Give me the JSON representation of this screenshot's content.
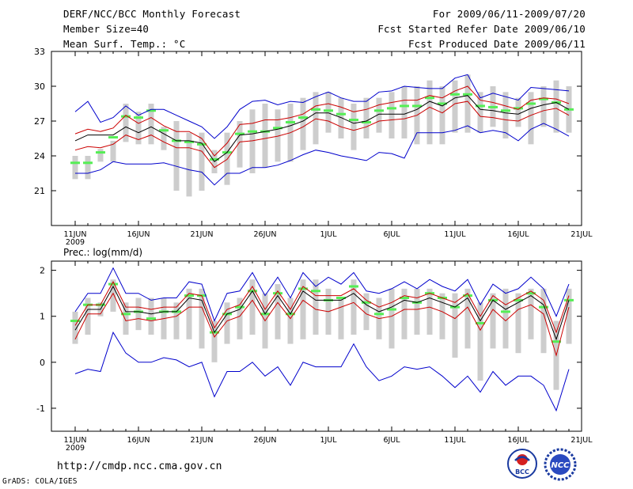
{
  "header": {
    "title": "DERF/NCC/BCC Monthly Forecast",
    "member_size": "Member Size=40",
    "variable": "Mean Surf. Temp.: °C",
    "forecast_period": "For 2009/06/11-2009/07/20",
    "start_date": "Fcst Started Refer Date 2009/06/10",
    "produced_date": "Fcst Produced Date 2009/06/11"
  },
  "footer": {
    "url": "http://cmdp.ncc.cma.gov.cn",
    "credit": "GrADS: COLA/IGES",
    "logo_left_text": "BCC",
    "logo_right_text": "NCC"
  },
  "colors": {
    "box": "#cdcdcd",
    "mean_marker": "#55ee55",
    "outer_line": "#0000cc",
    "inner_line": "#cc0000",
    "center_line": "#000000"
  },
  "chart_data": [
    {
      "type": "line",
      "title": "Mean Surf. Temp.: °C",
      "ylim": [
        18,
        33
      ],
      "yticks": [
        "21",
        "24",
        "27",
        "30",
        "33"
      ],
      "x_ticks": [
        "11JUN",
        "16JUN",
        "21JUN",
        "26JUN",
        "1JUL",
        "6JUL",
        "11JUL",
        "16JUL",
        "21JUL"
      ],
      "x_year_label": "2009",
      "days": 40,
      "box_low": [
        22.0,
        22.0,
        23.5,
        23.5,
        25.2,
        25.0,
        25.0,
        24.5,
        21.0,
        20.5,
        21.0,
        22.5,
        21.5,
        23.0,
        22.5,
        23.0,
        23.5,
        23.5,
        24.5,
        25.0,
        26.0,
        25.5,
        24.5,
        25.5,
        26.0,
        25.5,
        25.5,
        25.0,
        25.0,
        25.0,
        26.0,
        26.0,
        26.0,
        26.5,
        25.5,
        26.5,
        25.0,
        26.5,
        26.0,
        26.0
      ],
      "box_high": [
        24.0,
        24.0,
        24.6,
        25.3,
        28.5,
        27.8,
        28.5,
        26.5,
        27.0,
        26.0,
        26.0,
        24.5,
        26.0,
        27.0,
        28.0,
        28.5,
        28.0,
        28.5,
        29.0,
        29.5,
        29.5,
        29.0,
        28.5,
        29.0,
        29.0,
        29.5,
        30.0,
        30.0,
        30.5,
        30.0,
        30.5,
        31.0,
        29.5,
        30.0,
        29.5,
        29.0,
        29.5,
        30.0,
        30.5,
        30.0
      ],
      "mean_marker": [
        23.4,
        23.4,
        24.3,
        25.6,
        27.4,
        27.3,
        27.9,
        26.2,
        25.3,
        25.2,
        25.0,
        23.7,
        24.3,
        25.9,
        26.1,
        26.1,
        26.4,
        26.9,
        27.3,
        28.0,
        27.9,
        27.6,
        27.1,
        26.9,
        27.9,
        28.1,
        28.3,
        28.3,
        29.0,
        28.5,
        29.3,
        29.3,
        28.3,
        28.2,
        27.9,
        28.1,
        28.5,
        28.9,
        28.6,
        28.0
      ],
      "series": [
        {
          "name": "max",
          "color": "#0000cc",
          "values": [
            27.8,
            28.7,
            26.9,
            27.3,
            28.3,
            27.5,
            28.0,
            28.0,
            27.5,
            27.0,
            26.5,
            25.5,
            26.5,
            28.0,
            28.7,
            28.8,
            28.4,
            28.7,
            28.6,
            29.1,
            29.5,
            29.0,
            28.7,
            28.7,
            29.5,
            29.6,
            30.0,
            29.9,
            29.8,
            29.8,
            30.7,
            31.0,
            29.0,
            29.4,
            29.1,
            28.8,
            29.9,
            29.8,
            29.7,
            29.6
          ]
        },
        {
          "name": "upper",
          "color": "#cc0000",
          "values": [
            25.9,
            26.3,
            26.1,
            26.4,
            27.5,
            26.8,
            27.3,
            26.6,
            26.1,
            26.1,
            25.5,
            24.0,
            25.1,
            26.7,
            26.8,
            27.1,
            27.1,
            27.3,
            27.6,
            28.3,
            28.5,
            28.2,
            27.8,
            28.0,
            28.4,
            28.6,
            28.8,
            28.8,
            29.2,
            29.0,
            29.6,
            30.0,
            28.8,
            28.6,
            28.3,
            28.0,
            28.8,
            29.0,
            28.9,
            28.5
          ]
        },
        {
          "name": "median",
          "color": "#000000",
          "values": [
            25.3,
            25.8,
            25.8,
            25.8,
            26.5,
            26.0,
            26.5,
            25.9,
            25.3,
            25.3,
            25.1,
            23.5,
            24.3,
            25.8,
            25.9,
            26.1,
            26.3,
            26.6,
            27.0,
            27.7,
            27.7,
            27.3,
            26.8,
            27.0,
            27.6,
            27.6,
            27.6,
            28.0,
            28.7,
            28.3,
            29.0,
            29.2,
            28.0,
            27.9,
            27.7,
            27.6,
            28.1,
            28.4,
            28.6,
            28.0
          ]
        },
        {
          "name": "lower",
          "color": "#cc0000",
          "values": [
            24.5,
            24.8,
            24.7,
            25.0,
            25.8,
            25.4,
            25.8,
            25.2,
            24.7,
            24.7,
            24.4,
            23.0,
            23.7,
            25.2,
            25.3,
            25.5,
            25.7,
            26.0,
            26.5,
            27.2,
            27.0,
            26.5,
            26.2,
            26.5,
            27.0,
            27.1,
            27.2,
            27.5,
            28.2,
            27.7,
            28.5,
            28.7,
            27.4,
            27.3,
            27.1,
            27.0,
            27.5,
            27.9,
            28.1,
            27.5
          ]
        },
        {
          "name": "min",
          "color": "#0000cc",
          "values": [
            22.5,
            22.5,
            22.8,
            23.5,
            23.3,
            23.3,
            23.3,
            23.4,
            23.1,
            22.8,
            22.6,
            21.5,
            22.5,
            22.5,
            23.0,
            23.0,
            23.2,
            23.6,
            24.1,
            24.5,
            24.3,
            24.0,
            23.8,
            23.6,
            24.3,
            24.2,
            23.8,
            26.0,
            26.0,
            26.0,
            26.2,
            26.6,
            26.0,
            26.2,
            26.0,
            25.3,
            26.3,
            26.8,
            26.3,
            25.7
          ]
        }
      ]
    },
    {
      "type": "line",
      "title": "Prec.: log(mm/d)",
      "ylim": [
        -1.5,
        2.2
      ],
      "yticks": [
        "-1",
        "0",
        "1",
        "2"
      ],
      "x_ticks": [
        "11JUN",
        "16JUN",
        "21JUN",
        "26JUN",
        "1JUL",
        "6JUL",
        "11JUL",
        "16JUL",
        "21JUL"
      ],
      "x_year_label": "2009",
      "days": 40,
      "box_low": [
        0.4,
        0.6,
        1.0,
        1.1,
        0.6,
        0.7,
        0.6,
        0.5,
        0.5,
        0.5,
        0.3,
        0.0,
        0.4,
        0.5,
        0.6,
        0.3,
        0.5,
        0.4,
        0.5,
        0.6,
        0.6,
        0.5,
        0.6,
        0.7,
        0.5,
        0.3,
        0.5,
        0.6,
        0.6,
        0.5,
        0.1,
        0.3,
        -0.4,
        0.3,
        0.3,
        0.2,
        0.5,
        0.2,
        -0.6,
        0.4
      ],
      "box_high": [
        1.1,
        1.4,
        1.3,
        1.8,
        1.3,
        1.4,
        1.4,
        1.4,
        1.3,
        1.6,
        1.6,
        0.9,
        1.3,
        1.4,
        1.8,
        1.5,
        1.7,
        1.4,
        1.8,
        1.8,
        1.6,
        1.4,
        1.8,
        1.5,
        1.4,
        1.6,
        1.6,
        1.6,
        1.6,
        1.5,
        1.5,
        1.6,
        1.3,
        1.5,
        1.6,
        1.5,
        1.6,
        1.6,
        0.9,
        1.6
      ],
      "mean_marker": [
        0.9,
        1.25,
        1.25,
        1.7,
        1.05,
        1.1,
        0.95,
        1.1,
        1.1,
        1.45,
        1.45,
        0.65,
        1.05,
        1.2,
        1.55,
        1.05,
        1.5,
        1.05,
        1.6,
        1.55,
        1.35,
        1.4,
        1.65,
        1.3,
        1.05,
        1.15,
        1.4,
        1.3,
        1.5,
        1.4,
        1.2,
        1.45,
        0.85,
        1.35,
        1.1,
        1.35,
        1.5,
        1.2,
        0.45,
        1.35
      ],
      "series": [
        {
          "name": "max",
          "color": "#0000cc",
          "values": [
            1.1,
            1.5,
            1.5,
            2.05,
            1.5,
            1.5,
            1.35,
            1.4,
            1.4,
            1.75,
            1.7,
            0.9,
            1.5,
            1.55,
            1.95,
            1.45,
            1.85,
            1.4,
            1.95,
            1.65,
            1.85,
            1.7,
            1.95,
            1.55,
            1.5,
            1.6,
            1.75,
            1.6,
            1.8,
            1.65,
            1.55,
            1.8,
            1.25,
            1.7,
            1.5,
            1.6,
            1.85,
            1.6,
            1.0,
            1.7
          ]
        },
        {
          "name": "upper",
          "color": "#cc0000",
          "values": [
            0.8,
            1.25,
            1.25,
            1.75,
            1.2,
            1.2,
            1.15,
            1.2,
            1.2,
            1.5,
            1.45,
            0.75,
            1.15,
            1.25,
            1.65,
            1.15,
            1.55,
            1.15,
            1.65,
            1.45,
            1.45,
            1.45,
            1.6,
            1.35,
            1.2,
            1.3,
            1.45,
            1.4,
            1.5,
            1.4,
            1.3,
            1.5,
            1.0,
            1.45,
            1.25,
            1.4,
            1.55,
            1.35,
            0.65,
            1.45
          ]
        },
        {
          "name": "median",
          "color": "#000000",
          "values": [
            0.7,
            1.15,
            1.15,
            1.65,
            1.1,
            1.1,
            1.05,
            1.1,
            1.1,
            1.4,
            1.35,
            0.65,
            1.05,
            1.15,
            1.55,
            1.05,
            1.45,
            1.05,
            1.55,
            1.35,
            1.35,
            1.35,
            1.5,
            1.25,
            1.1,
            1.2,
            1.35,
            1.3,
            1.4,
            1.3,
            1.2,
            1.4,
            0.9,
            1.35,
            1.15,
            1.3,
            1.45,
            1.25,
            0.5,
            1.35
          ]
        },
        {
          "name": "lower",
          "color": "#cc0000",
          "values": [
            0.5,
            1.05,
            1.05,
            1.5,
            0.9,
            0.95,
            0.9,
            0.95,
            1.0,
            1.2,
            1.2,
            0.55,
            0.9,
            1.0,
            1.35,
            0.9,
            1.3,
            0.95,
            1.35,
            1.15,
            1.1,
            1.2,
            1.3,
            1.05,
            0.95,
            1.0,
            1.15,
            1.15,
            1.2,
            1.1,
            0.95,
            1.2,
            0.7,
            1.15,
            0.9,
            1.15,
            1.25,
            1.05,
            0.15,
            1.2
          ]
        },
        {
          "name": "min",
          "color": "#0000cc",
          "values": [
            -0.25,
            -0.15,
            -0.2,
            0.65,
            0.2,
            0.0,
            0.0,
            0.1,
            0.05,
            -0.1,
            0.0,
            -0.75,
            -0.2,
            -0.2,
            0.0,
            -0.3,
            -0.1,
            -0.5,
            0.0,
            -0.1,
            -0.1,
            -0.1,
            0.4,
            -0.1,
            -0.4,
            -0.3,
            -0.1,
            -0.15,
            -0.1,
            -0.3,
            -0.55,
            -0.3,
            -0.65,
            -0.2,
            -0.5,
            -0.3,
            -0.3,
            -0.5,
            -1.05,
            -0.15
          ]
        }
      ]
    }
  ]
}
